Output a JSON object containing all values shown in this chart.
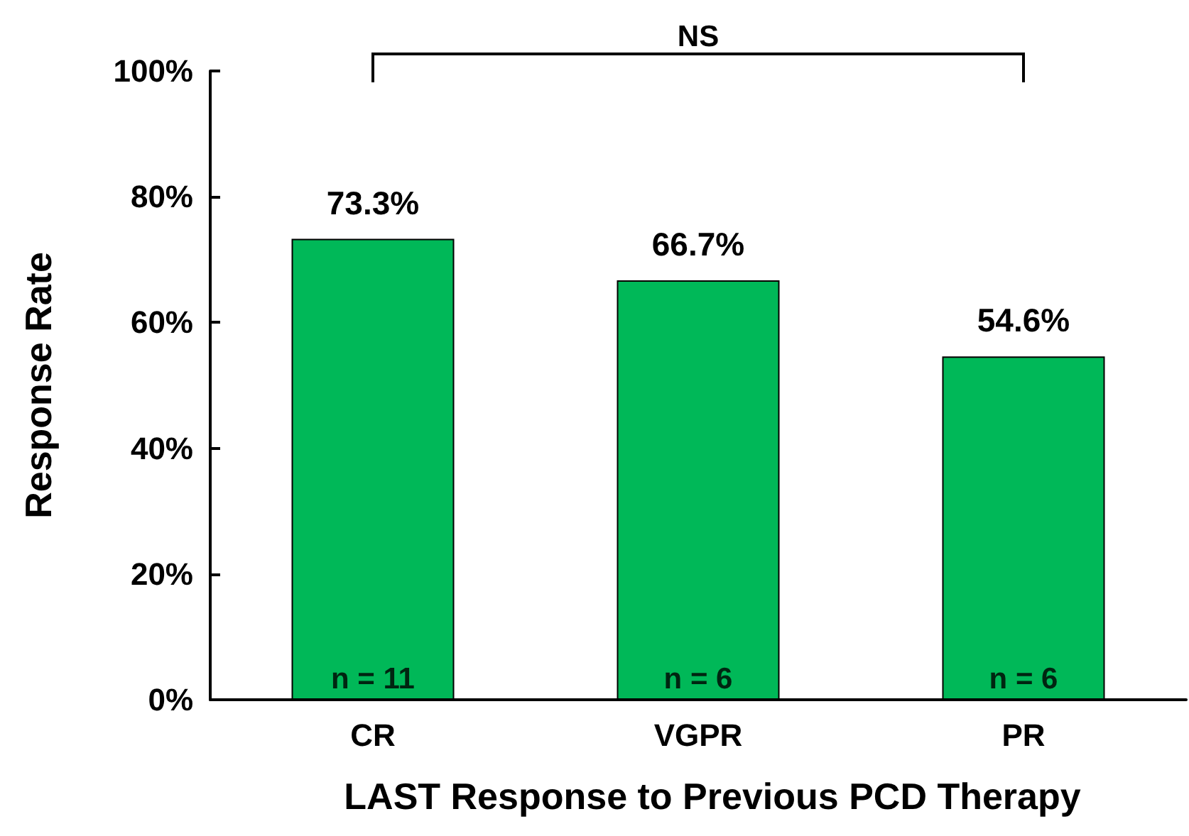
{
  "chart_data": {
    "type": "bar",
    "xlabel": "LAST Response to Previous PCD Therapy",
    "ylabel": "Response Rate",
    "categories": [
      "CR",
      "VGPR",
      "PR"
    ],
    "values": [
      73.3,
      66.7,
      54.6
    ],
    "value_labels": [
      "73.3%",
      "66.7%",
      "54.6%"
    ],
    "color": "#00b858",
    "ylim": [
      0,
      100
    ],
    "yticks": [
      {
        "value": 0,
        "label": "0%"
      },
      {
        "value": 20,
        "label": "20%"
      },
      {
        "value": 40,
        "label": "40%"
      },
      {
        "value": 60,
        "label": "60%"
      },
      {
        "value": 80,
        "label": "80%"
      },
      {
        "value": 100,
        "label": "100%"
      }
    ],
    "grid": false,
    "annotations": [
      "n = 11",
      "n = 6",
      "n = 6",
      "NS"
    ]
  }
}
